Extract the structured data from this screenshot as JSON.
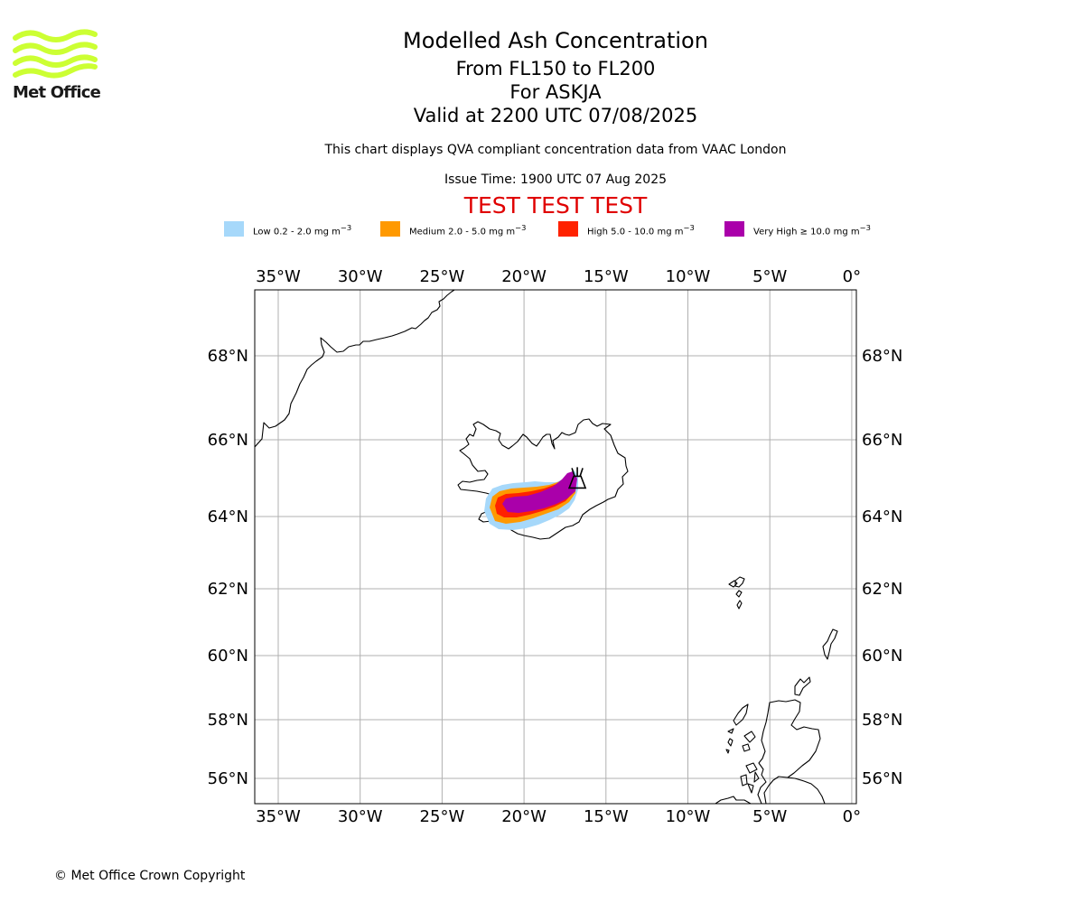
{
  "header": {
    "title": "Modelled Ash Concentration",
    "subtitle_levels": "From FL150 to FL200",
    "subtitle_volcano": "For ASKJA",
    "subtitle_valid": "Valid at 2200 UTC 07/08/2025",
    "description": "This chart displays QVA compliant concentration data from VAAC London",
    "issue_time": "Issue Time: 1900 UTC 07 Aug 2025",
    "test_banner": "TEST TEST TEST"
  },
  "logo": {
    "text": "Met Office",
    "icon": "met-office-wave-logo",
    "color": "#ccff33"
  },
  "legend": [
    {
      "label": "Low 0.2 - 2.0 mg m",
      "unit_sup": "−3",
      "color": "#a6d8fa"
    },
    {
      "label": "Medium 2.0 - 5.0 mg m",
      "unit_sup": "−3",
      "color": "#ff9900"
    },
    {
      "label": "High 5.0 - 10.0 mg m",
      "unit_sup": "−3",
      "color": "#ff2200"
    },
    {
      "label": "Very High  ≥  10.0 mg m",
      "unit_sup": "−3",
      "color": "#aa00aa"
    }
  ],
  "map": {
    "extent": {
      "lon_min": -36.4,
      "lon_max": 0.5,
      "lat_min": 55.3,
      "lat_max": 69.8
    },
    "lon_ticks": [
      -35,
      -30,
      -25,
      -20,
      -15,
      -10,
      -5,
      0
    ],
    "lon_labels": [
      "35°W",
      "30°W",
      "25°W",
      "20°W",
      "15°W",
      "10°W",
      "5°W",
      "0°"
    ],
    "lat_ticks": [
      56,
      58,
      60,
      62,
      64,
      66,
      68
    ],
    "lat_labels": [
      "56°N",
      "58°N",
      "60°N",
      "62°N",
      "64°N",
      "66°N",
      "68°N"
    ],
    "grid": true,
    "volcano": {
      "name": "ASKJA",
      "lon": -16.75,
      "lat": 65.05,
      "icon": "volcano-icon"
    }
  },
  "footer": {
    "copyright": "© Met Office Crown Copyright"
  }
}
